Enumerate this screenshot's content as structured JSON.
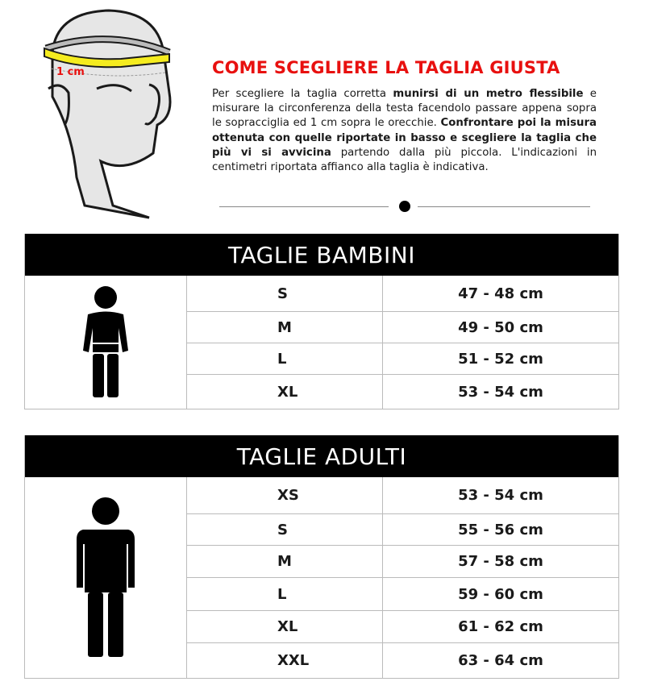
{
  "illustration": {
    "label": "1 cm",
    "tape_color": "#f5ec1f",
    "skin_color": "#e6e6e6"
  },
  "header": {
    "title": "COME SCEGLIERE LA TAGLIA GIUSTA",
    "title_color": "#e8100f"
  },
  "instructions": [
    {
      "text": "Per scegliere la taglia corretta ",
      "bold": false
    },
    {
      "text": "munirsi di un metro flessibile",
      "bold": true
    },
    {
      "text": " e misurare la circonferenza della testa facendolo passare appena sopra le sopracciglia ed 1 cm sopra le orecchie. ",
      "bold": false
    },
    {
      "text": "Confrontare poi la misura ottenuta con quelle riportate in basso e scegliere la taglia che più vi si avvicina",
      "bold": true
    },
    {
      "text": " partendo dalla più piccola. L'indicazioni in centimetri riportata affianco alla taglia è indicativa.",
      "bold": false
    }
  ],
  "kids_table": {
    "title": "TAGLIE BAMBINI",
    "icon": "child-figure-icon",
    "rows": [
      {
        "size": "S",
        "measure": "47 - 48 cm"
      },
      {
        "size": "M",
        "measure": "49 - 50 cm"
      },
      {
        "size": "L",
        "measure": "51 - 52 cm"
      },
      {
        "size": "XL",
        "measure": "53 - 54 cm"
      }
    ]
  },
  "adults_table": {
    "title": "TAGLIE ADULTI",
    "icon": "adult-figure-icon",
    "rows": [
      {
        "size": "XS",
        "measure": "53 - 54 cm"
      },
      {
        "size": "S",
        "measure": "55 - 56 cm"
      },
      {
        "size": "M",
        "measure": "57 - 58 cm"
      },
      {
        "size": "L",
        "measure": "59 - 60 cm"
      },
      {
        "size": "XL",
        "measure": "61 - 62 cm"
      },
      {
        "size": "XXL",
        "measure": "63 - 64 cm"
      }
    ]
  }
}
